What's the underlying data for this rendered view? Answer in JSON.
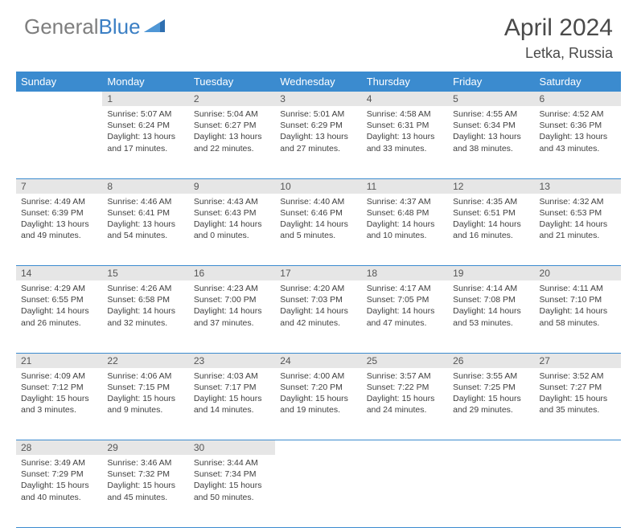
{
  "brand": {
    "part1": "General",
    "part2": "Blue"
  },
  "title": "April 2024",
  "location": "Letka, Russia",
  "colors": {
    "header_bg": "#3b8bcf",
    "header_text": "#ffffff",
    "daynum_bg": "#e6e6e6",
    "divider": "#3b8bcf",
    "brand_gray": "#7e7e7e",
    "brand_blue": "#3b7fc4"
  },
  "weekdays": [
    "Sunday",
    "Monday",
    "Tuesday",
    "Wednesday",
    "Thursday",
    "Friday",
    "Saturday"
  ],
  "weeks": [
    [
      null,
      {
        "n": "1",
        "sr": "5:07 AM",
        "ss": "6:24 PM",
        "dl": "13 hours and 17 minutes."
      },
      {
        "n": "2",
        "sr": "5:04 AM",
        "ss": "6:27 PM",
        "dl": "13 hours and 22 minutes."
      },
      {
        "n": "3",
        "sr": "5:01 AM",
        "ss": "6:29 PM",
        "dl": "13 hours and 27 minutes."
      },
      {
        "n": "4",
        "sr": "4:58 AM",
        "ss": "6:31 PM",
        "dl": "13 hours and 33 minutes."
      },
      {
        "n": "5",
        "sr": "4:55 AM",
        "ss": "6:34 PM",
        "dl": "13 hours and 38 minutes."
      },
      {
        "n": "6",
        "sr": "4:52 AM",
        "ss": "6:36 PM",
        "dl": "13 hours and 43 minutes."
      }
    ],
    [
      {
        "n": "7",
        "sr": "4:49 AM",
        "ss": "6:39 PM",
        "dl": "13 hours and 49 minutes."
      },
      {
        "n": "8",
        "sr": "4:46 AM",
        "ss": "6:41 PM",
        "dl": "13 hours and 54 minutes."
      },
      {
        "n": "9",
        "sr": "4:43 AM",
        "ss": "6:43 PM",
        "dl": "14 hours and 0 minutes."
      },
      {
        "n": "10",
        "sr": "4:40 AM",
        "ss": "6:46 PM",
        "dl": "14 hours and 5 minutes."
      },
      {
        "n": "11",
        "sr": "4:37 AM",
        "ss": "6:48 PM",
        "dl": "14 hours and 10 minutes."
      },
      {
        "n": "12",
        "sr": "4:35 AM",
        "ss": "6:51 PM",
        "dl": "14 hours and 16 minutes."
      },
      {
        "n": "13",
        "sr": "4:32 AM",
        "ss": "6:53 PM",
        "dl": "14 hours and 21 minutes."
      }
    ],
    [
      {
        "n": "14",
        "sr": "4:29 AM",
        "ss": "6:55 PM",
        "dl": "14 hours and 26 minutes."
      },
      {
        "n": "15",
        "sr": "4:26 AM",
        "ss": "6:58 PM",
        "dl": "14 hours and 32 minutes."
      },
      {
        "n": "16",
        "sr": "4:23 AM",
        "ss": "7:00 PM",
        "dl": "14 hours and 37 minutes."
      },
      {
        "n": "17",
        "sr": "4:20 AM",
        "ss": "7:03 PM",
        "dl": "14 hours and 42 minutes."
      },
      {
        "n": "18",
        "sr": "4:17 AM",
        "ss": "7:05 PM",
        "dl": "14 hours and 47 minutes."
      },
      {
        "n": "19",
        "sr": "4:14 AM",
        "ss": "7:08 PM",
        "dl": "14 hours and 53 minutes."
      },
      {
        "n": "20",
        "sr": "4:11 AM",
        "ss": "7:10 PM",
        "dl": "14 hours and 58 minutes."
      }
    ],
    [
      {
        "n": "21",
        "sr": "4:09 AM",
        "ss": "7:12 PM",
        "dl": "15 hours and 3 minutes."
      },
      {
        "n": "22",
        "sr": "4:06 AM",
        "ss": "7:15 PM",
        "dl": "15 hours and 9 minutes."
      },
      {
        "n": "23",
        "sr": "4:03 AM",
        "ss": "7:17 PM",
        "dl": "15 hours and 14 minutes."
      },
      {
        "n": "24",
        "sr": "4:00 AM",
        "ss": "7:20 PM",
        "dl": "15 hours and 19 minutes."
      },
      {
        "n": "25",
        "sr": "3:57 AM",
        "ss": "7:22 PM",
        "dl": "15 hours and 24 minutes."
      },
      {
        "n": "26",
        "sr": "3:55 AM",
        "ss": "7:25 PM",
        "dl": "15 hours and 29 minutes."
      },
      {
        "n": "27",
        "sr": "3:52 AM",
        "ss": "7:27 PM",
        "dl": "15 hours and 35 minutes."
      }
    ],
    [
      {
        "n": "28",
        "sr": "3:49 AM",
        "ss": "7:29 PM",
        "dl": "15 hours and 40 minutes."
      },
      {
        "n": "29",
        "sr": "3:46 AM",
        "ss": "7:32 PM",
        "dl": "15 hours and 45 minutes."
      },
      {
        "n": "30",
        "sr": "3:44 AM",
        "ss": "7:34 PM",
        "dl": "15 hours and 50 minutes."
      },
      null,
      null,
      null,
      null
    ]
  ],
  "labels": {
    "sunrise": "Sunrise:",
    "sunset": "Sunset:",
    "daylight": "Daylight:"
  }
}
